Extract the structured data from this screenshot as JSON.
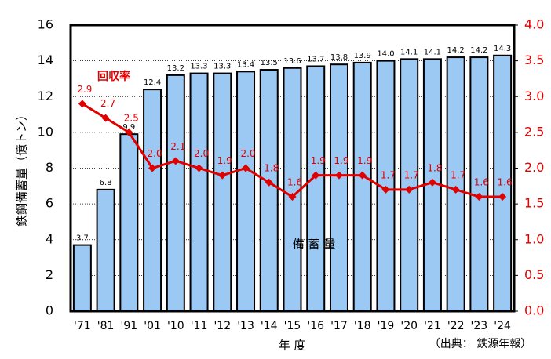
{
  "chart_data": {
    "type": "bar-line",
    "categories": [
      "'71",
      "'81",
      "'91",
      "'01",
      "'10",
      "'11",
      "'12",
      "'13",
      "'14",
      "'15",
      "'16",
      "'17",
      "'18",
      "'19",
      "'20",
      "'21",
      "'22",
      "'23",
      "'24"
    ],
    "series": [
      {
        "name": "備 蓄 量",
        "type": "bar",
        "color": "#9cc8f4",
        "values": [
          3.7,
          6.8,
          9.9,
          12.4,
          13.2,
          13.3,
          13.3,
          13.4,
          13.5,
          13.6,
          13.7,
          13.8,
          13.9,
          14.0,
          14.1,
          14.1,
          14.2,
          14.2,
          14.3
        ],
        "value_labels": [
          "3.7",
          "6.8",
          "9.9",
          "12.4",
          "13.2",
          "13.3",
          "13.3",
          "13.4",
          "13.5",
          "13.6",
          "13.7",
          "13.8",
          "13.9",
          "14.0",
          "14.1",
          "14.1",
          "14.2",
          "14.2",
          "14.3"
        ]
      },
      {
        "name": "回収率",
        "type": "line",
        "axis": "y2",
        "color": "#e00000",
        "values": [
          2.9,
          2.7,
          2.5,
          2.0,
          2.1,
          2.0,
          1.9,
          2.0,
          1.8,
          1.6,
          1.9,
          1.9,
          1.9,
          1.7,
          1.7,
          1.8,
          1.7,
          1.6,
          1.6
        ],
        "value_labels": [
          "2.9",
          "2.7",
          "2.5",
          "2.0",
          "2.1",
          "2.0",
          "1.9",
          "2.0",
          "1.8",
          "1.6",
          "1.9",
          "1.9",
          "1.9",
          "1.7",
          "1.7",
          "1.8",
          "1.7",
          "1.6",
          "1.6"
        ]
      }
    ],
    "ylabel": "鉄鋼備蓄量（億トン）",
    "xlabel": "年 度",
    "source": "（出典： 鉄源年報）",
    "ylim": [
      0,
      16
    ],
    "yticks": [
      0,
      2,
      4,
      6,
      8,
      10,
      12,
      14,
      16
    ],
    "y2lim": [
      0,
      4
    ],
    "y2ticks": [
      {
        "value": 0,
        "label": "0.0"
      },
      0.5,
      {
        "value": 1,
        "label": "1.0"
      },
      1.5,
      {
        "value": 2,
        "label": "2.0"
      },
      2.5,
      {
        "value": 3,
        "label": "3.0"
      },
      3.5,
      {
        "value": 4,
        "label": "4.0"
      }
    ],
    "grid": true
  }
}
